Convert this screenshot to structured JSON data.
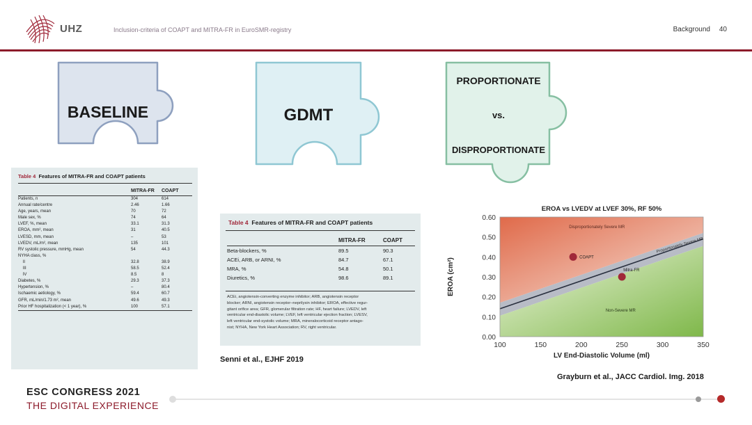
{
  "header": {
    "logo_text": "UHZ",
    "title": "Inclusion-criteria of COAPT and MITRA-FR in EuroSMR-registry",
    "section": "Background",
    "page": "40",
    "accent": "#8c1a2a"
  },
  "puzzles": {
    "baseline": {
      "label": "BASELINE",
      "color": "#dde4ee",
      "stroke": "#8ea0bf"
    },
    "gdmt": {
      "label": "GDMT",
      "color": "#dff0f4",
      "stroke": "#8fc7d3"
    },
    "prop": {
      "label1": "PROPORTIONATE",
      "label2": "vs.",
      "label3": "DISPROPORTIONATE",
      "color": "#e1f2ea",
      "stroke": "#86bfa2"
    }
  },
  "table1": {
    "number": "Table 4",
    "title": "Features of MITRA-FR and COAPT patients",
    "columns": [
      "",
      "MITRA-FR",
      "COAPT"
    ],
    "rows": [
      [
        "Patients, n",
        "304",
        "614"
      ],
      [
        "Annual rate/centre",
        "2.46",
        "1.66"
      ],
      [
        "Age, years, mean",
        "70",
        "72"
      ],
      [
        "Male sex, %",
        "74",
        "64"
      ],
      [
        "LVEF, %, mean",
        "33.1",
        "31.3"
      ],
      [
        "EROA, mm², mean",
        "31",
        "40.5"
      ],
      [
        "LVESD, mm, mean",
        "–",
        "53"
      ],
      [
        "LVEDV, mL/m², mean",
        "135",
        "101"
      ],
      [
        "RV systolic pressure, mmHg, mean",
        "54",
        "44.3"
      ],
      [
        "NYHA class, %",
        "",
        ""
      ],
      [
        "    II",
        "32.8",
        "38.9"
      ],
      [
        "    III",
        "58.5",
        "52.4"
      ],
      [
        "    IV",
        "8.5",
        "8"
      ],
      [
        "Diabetes, %",
        "29.3",
        "37.3"
      ],
      [
        "Hypertension, %",
        "–",
        "80.4"
      ],
      [
        "Ischaemic aetiology, %",
        "59.4",
        "60.7"
      ],
      [
        "GFR, mL/min/1.73 m², mean",
        "49.6",
        "49.3"
      ],
      [
        "Prior HF hospitalization (< 1 year), %",
        "100",
        "57.1"
      ]
    ]
  },
  "table2": {
    "number": "Table 4",
    "title": "Features of MITRA-FR and COAPT patients",
    "columns": [
      "",
      "MITRA-FR",
      "COAPT"
    ],
    "rows": [
      [
        "Beta-blockers, %",
        "89.5",
        "90.3"
      ],
      [
        "ACEi, ARB, or ARNI, %",
        "84.7",
        "67.1"
      ],
      [
        "MRA, %",
        "54.8",
        "50.1"
      ],
      [
        "Diuretics, %",
        "98.6",
        "89.1"
      ]
    ],
    "footnote": [
      "ACEi, angiotensin-converting enzyme inhibitor; ARB, angiotensin receptor",
      "blocker; ARNI, angiotensin receptor–neprilysin inhibitor; EROA, effective regur-",
      "gitant orifice area; GFR, glomerular filtration rate; HF, heart failure; LVEDV, left",
      "ventricular end-diastolic volume; LVEF, left ventricular ejection fraction; LVESV,",
      "left ventricular end-systolic volume; MRA, mineralocorticoid receptor antago-",
      "nist; NYHA, New York Heart Association; RV, right ventricular."
    ]
  },
  "citations": {
    "senni": "Senni et al., EJHF 2019",
    "grayburn": "Grayburn et al., JACC Cardiol. Img. 2018"
  },
  "chart_data": {
    "type": "scatter",
    "title": "EROA vs LVEDV at LVEF 30%, RF 50%",
    "xlabel": "LV End-Diastolic Volume (ml)",
    "ylabel": "EROA (cm²)",
    "xlim": [
      100,
      350
    ],
    "ylim": [
      0.0,
      0.6
    ],
    "xticks": [
      "100",
      "150",
      "200",
      "250",
      "300",
      "350"
    ],
    "yticks": [
      "0.00",
      "0.10",
      "0.20",
      "0.30",
      "0.40",
      "0.50",
      "0.60"
    ],
    "regions": {
      "upper": "Disproportionately Severe MR",
      "band": "Proportionately Severe MR",
      "lower": "Non-Severe MR"
    },
    "line": {
      "x": [
        100,
        350
      ],
      "y": [
        0.14,
        0.49
      ]
    },
    "points": [
      {
        "name": "COAPT",
        "x": 190,
        "y": 0.4
      },
      {
        "name": "Mitra-FR",
        "x": 250,
        "y": 0.3
      }
    ],
    "colors": {
      "upper": "#e06a4a",
      "band": "#b8bcc6",
      "lower": "#7fb84a",
      "point": "#a0283a"
    }
  },
  "footer": {
    "line1": "ESC CONGRESS 2021",
    "line2": "THE DIGITAL EXPERIENCE"
  }
}
